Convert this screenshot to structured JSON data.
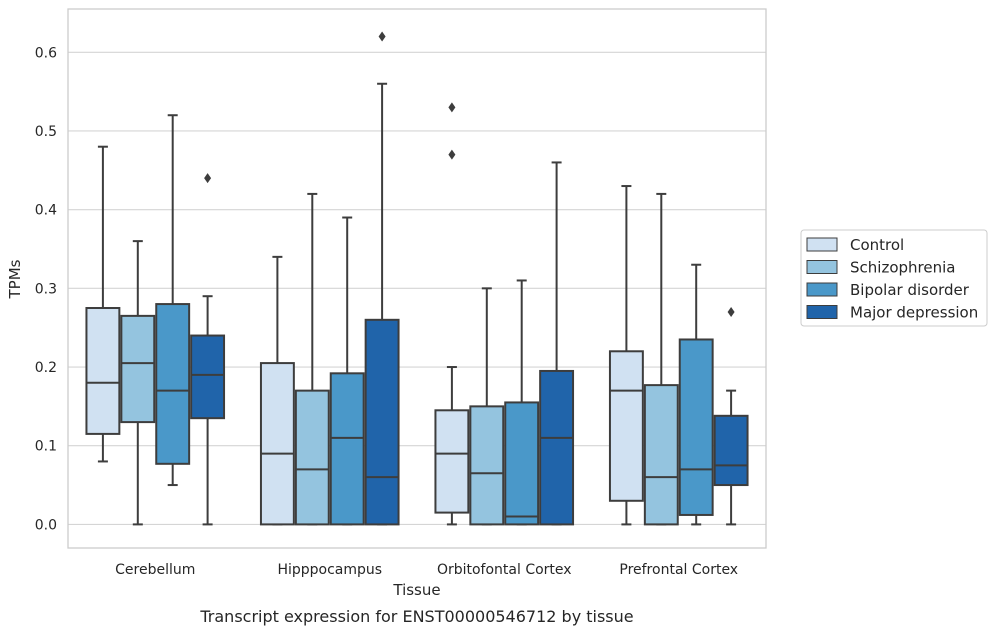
{
  "chart_data": {
    "type": "box",
    "caption": "Transcript expression for ENST00000546712 by tissue",
    "xlabel": "Tissue",
    "ylabel": "TPMs",
    "ylim": [
      -0.03,
      0.655
    ],
    "yticks": [
      0.0,
      0.1,
      0.2,
      0.3,
      0.4,
      0.5,
      0.6
    ],
    "ytick_labels": [
      "0.0",
      "0.1",
      "0.2",
      "0.3",
      "0.4",
      "0.5",
      "0.6"
    ],
    "grid": "horizontal",
    "legend_position": "right",
    "categories": [
      "Cerebellum",
      "Hipppocampus",
      "Orbitofontal Cortex",
      "Prefrontal Cortex"
    ],
    "series": [
      {
        "name": "Control",
        "color": "#d0e1f2",
        "boxes": [
          {
            "whislo": 0.08,
            "q1": 0.115,
            "median": 0.18,
            "q3": 0.275,
            "whishi": 0.48,
            "fliers": []
          },
          {
            "whislo": 0.0,
            "q1": 0.0,
            "median": 0.09,
            "q3": 0.205,
            "whishi": 0.34,
            "fliers": []
          },
          {
            "whislo": 0.0,
            "q1": 0.015,
            "median": 0.09,
            "q3": 0.145,
            "whishi": 0.2,
            "fliers": [
              0.47,
              0.53
            ]
          },
          {
            "whislo": 0.0,
            "q1": 0.03,
            "median": 0.17,
            "q3": 0.22,
            "whishi": 0.43,
            "fliers": []
          }
        ]
      },
      {
        "name": "Schizophrenia",
        "color": "#94c4df",
        "boxes": [
          {
            "whislo": 0.0,
            "q1": 0.13,
            "median": 0.205,
            "q3": 0.265,
            "whishi": 0.36,
            "fliers": []
          },
          {
            "whislo": 0.0,
            "q1": 0.0,
            "median": 0.07,
            "q3": 0.17,
            "whishi": 0.42,
            "fliers": []
          },
          {
            "whislo": 0.0,
            "q1": 0.0,
            "median": 0.065,
            "q3": 0.15,
            "whishi": 0.3,
            "fliers": []
          },
          {
            "whislo": 0.0,
            "q1": 0.0,
            "median": 0.06,
            "q3": 0.177,
            "whishi": 0.42,
            "fliers": []
          }
        ]
      },
      {
        "name": "Bipolar disorder",
        "color": "#4a98c9",
        "boxes": [
          {
            "whislo": 0.05,
            "q1": 0.077,
            "median": 0.17,
            "q3": 0.28,
            "whishi": 0.52,
            "fliers": []
          },
          {
            "whislo": 0.0,
            "q1": 0.0,
            "median": 0.11,
            "q3": 0.192,
            "whishi": 0.39,
            "fliers": []
          },
          {
            "whislo": 0.0,
            "q1": 0.0,
            "median": 0.01,
            "q3": 0.155,
            "whishi": 0.31,
            "fliers": []
          },
          {
            "whislo": 0.0,
            "q1": 0.012,
            "median": 0.07,
            "q3": 0.235,
            "whishi": 0.33,
            "fliers": []
          }
        ]
      },
      {
        "name": "Major depression",
        "color": "#2064aa",
        "boxes": [
          {
            "whislo": 0.0,
            "q1": 0.135,
            "median": 0.19,
            "q3": 0.24,
            "whishi": 0.29,
            "fliers": [
              0.44
            ]
          },
          {
            "whislo": 0.0,
            "q1": 0.0,
            "median": 0.06,
            "q3": 0.26,
            "whishi": 0.56,
            "fliers": [
              0.62
            ]
          },
          {
            "whislo": 0.0,
            "q1": 0.0,
            "median": 0.11,
            "q3": 0.195,
            "whishi": 0.46,
            "fliers": []
          },
          {
            "whislo": 0.0,
            "q1": 0.05,
            "median": 0.075,
            "q3": 0.138,
            "whishi": 0.17,
            "fliers": [
              0.27
            ]
          }
        ]
      }
    ]
  }
}
